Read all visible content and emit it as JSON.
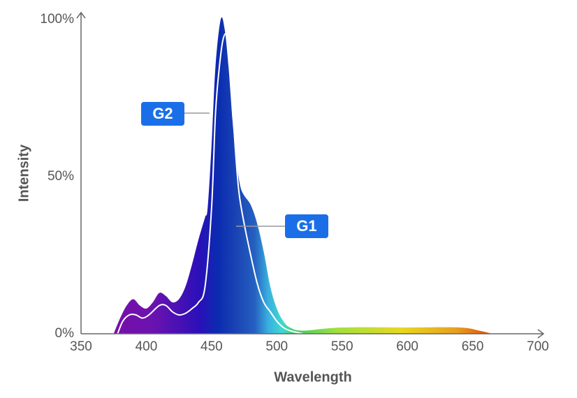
{
  "chart_data": {
    "type": "area",
    "x_label": "Wavelength",
    "y_label": "Intensity",
    "xlim": [
      350,
      700
    ],
    "xticks": [
      350,
      400,
      450,
      500,
      550,
      600,
      650,
      700
    ],
    "ylim": [
      0,
      100
    ],
    "yticks": [
      {
        "value": 0,
        "label": "0%"
      },
      {
        "value": 50,
        "label": "50%"
      },
      {
        "value": 100,
        "label": "100%"
      }
    ],
    "series": [
      {
        "name": "G2",
        "style": "gradient-area",
        "x": [
          375,
          380,
          385,
          390,
          395,
          400,
          405,
          410,
          415,
          420,
          425,
          430,
          435,
          440,
          445,
          447,
          450,
          453,
          457,
          460,
          463,
          466,
          469,
          472,
          475,
          480,
          485,
          490,
          495,
          500,
          505,
          510,
          520,
          550,
          600,
          640,
          655,
          665
        ],
        "values": [
          0,
          5,
          9,
          11,
          9,
          8,
          10,
          13,
          12,
          10,
          11,
          15,
          22,
          30,
          37,
          40,
          60,
          85,
          100,
          97,
          85,
          68,
          55,
          47,
          44,
          41,
          35,
          26,
          15,
          8,
          4,
          2,
          1,
          2,
          2,
          2,
          1,
          0
        ]
      },
      {
        "name": "G1",
        "style": "line",
        "color": "#ffffff",
        "x": [
          378,
          382,
          387,
          392,
          397,
          402,
          410,
          415,
          420,
          425,
          430,
          435,
          440,
          445,
          450,
          453,
          456,
          459,
          462,
          465,
          468,
          471,
          475,
          480,
          485,
          490,
          495,
          500,
          505,
          510,
          520
        ],
        "values": [
          0,
          4,
          6,
          6,
          5,
          6,
          9,
          9,
          7,
          6,
          6.5,
          8,
          10,
          15,
          40,
          70,
          85,
          94,
          94,
          80,
          60,
          45,
          35,
          25,
          16,
          10,
          7,
          4,
          2,
          1,
          0
        ]
      }
    ]
  }
}
